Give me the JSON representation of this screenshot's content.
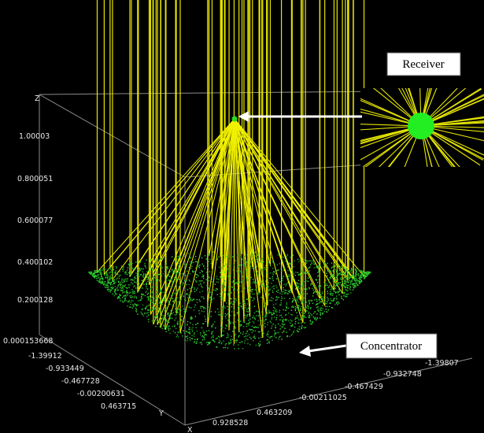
{
  "axes": {
    "z": {
      "label": "Z",
      "ticks": [
        "1.00003",
        "0.800051",
        "0.600077",
        "0.400102",
        "0.200128",
        "0.000153668"
      ]
    },
    "y": {
      "label": "Y",
      "ticks": [
        "-1.39912",
        "-0.933449",
        "-0.467728",
        "-0.00200631",
        "0.463715"
      ]
    },
    "x": {
      "label": "X",
      "ticks": [
        "0.928528",
        "0.463209",
        "-0.00211025",
        "-0.467429",
        "-0.932748",
        "-1.39807"
      ]
    }
  },
  "annotations": {
    "receiver": "Receiver",
    "concentrator": "Concentrator"
  }
}
